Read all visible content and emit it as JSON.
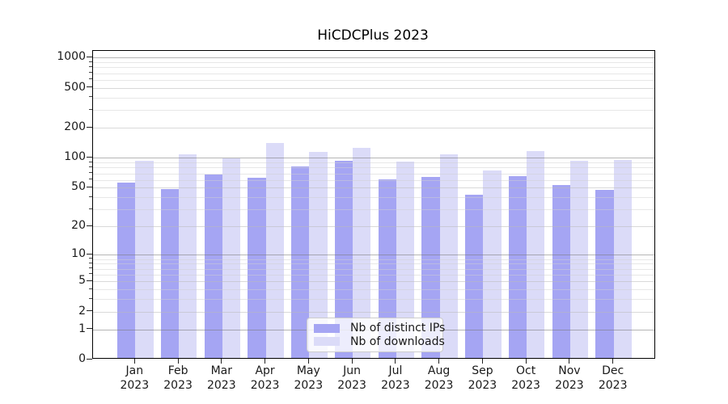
{
  "title": "HiCDCPlus 2023",
  "chart_data": {
    "type": "bar",
    "categories": [
      {
        "month": "Jan",
        "year": "2023"
      },
      {
        "month": "Feb",
        "year": "2023"
      },
      {
        "month": "Mar",
        "year": "2023"
      },
      {
        "month": "Apr",
        "year": "2023"
      },
      {
        "month": "May",
        "year": "2023"
      },
      {
        "month": "Jun",
        "year": "2023"
      },
      {
        "month": "Jul",
        "year": "2023"
      },
      {
        "month": "Aug",
        "year": "2023"
      },
      {
        "month": "Sep",
        "year": "2023"
      },
      {
        "month": "Oct",
        "year": "2023"
      },
      {
        "month": "Nov",
        "year": "2023"
      },
      {
        "month": "Dec",
        "year": "2023"
      }
    ],
    "series": [
      {
        "name": "Nb of distinct IPs",
        "color": "#a5a5f3",
        "values": [
          54,
          47,
          66,
          61,
          79,
          90,
          59,
          62,
          41,
          63,
          51,
          46
        ]
      },
      {
        "name": "Nb of downloads",
        "color": "#dbdbf8",
        "values": [
          90,
          104,
          95,
          137,
          111,
          122,
          88,
          104,
          72,
          112,
          90,
          92
        ]
      }
    ],
    "title": "HiCDCPlus 2023",
    "xlabel": "",
    "ylabel": "",
    "y_scale": "log10(value+1)",
    "y_ticks": [
      0,
      1,
      2,
      5,
      10,
      20,
      50,
      100,
      200,
      500,
      1000
    ],
    "ylim": [
      0,
      1167
    ],
    "grid": "horizontal, minor log decades, drawn above bars",
    "legend_position": "lower center inside plot"
  },
  "colors": {
    "distinct_ips_bar": "#a5a5f3",
    "downloads_bar": "#dbdbf8",
    "axis": "#000000",
    "grid_major": "#b9b9b9",
    "grid_minor": "#e9e9e9",
    "background": "#ffffff"
  }
}
